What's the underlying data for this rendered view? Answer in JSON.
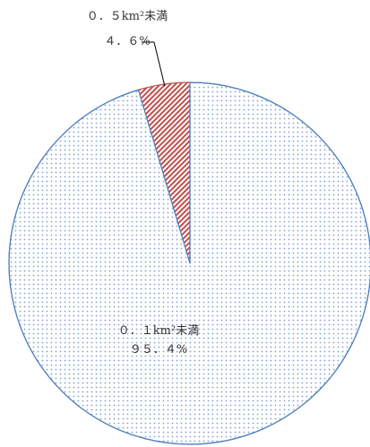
{
  "chart_data": {
    "type": "pie",
    "slices": [
      {
        "name": "0.５km²未満",
        "label": "０．５km²未満",
        "value": 4.6,
        "value_label": "４．６%",
        "color": "#c0504d",
        "pattern": "diagonal-hatch"
      },
      {
        "name": "0.１km²未満",
        "label": "０．１km²未満",
        "value": 95.4,
        "value_label": "９５．４%",
        "color": "#4f81bd",
        "pattern": "dots"
      }
    ],
    "legend": "none",
    "start_angle": "12 o'clock, smaller slice counter-clockwise"
  }
}
